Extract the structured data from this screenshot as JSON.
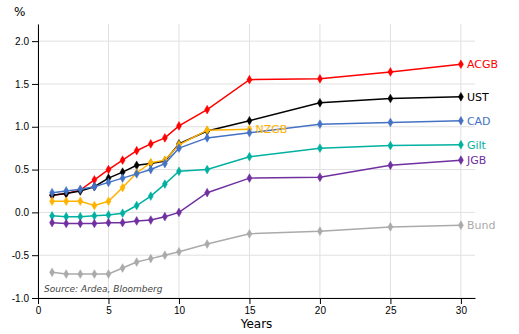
{
  "chart_data": {
    "type": "line",
    "x_label": "Years",
    "y_label": "%",
    "annotations": [
      "Source: Ardea, Bloomberg"
    ],
    "xlim": [
      0,
      31
    ],
    "xticks": [
      0,
      5,
      10,
      15,
      20,
      25,
      30
    ],
    "ylim": [
      -1.0,
      2.2
    ],
    "yticks": [
      {
        "value": -1.0,
        "label": "-1.0"
      },
      {
        "value": -0.5,
        "label": "-0.5"
      },
      {
        "value": 0.0,
        "label": "0.0"
      },
      {
        "value": 0.5,
        "label": "0.5"
      },
      {
        "value": 1.0,
        "label": "1.0"
      },
      {
        "value": 1.5,
        "label": "1.5"
      },
      {
        "value": 2.0,
        "label": "2.0"
      }
    ],
    "grid": true,
    "marker": "diamond",
    "series": [
      {
        "name": "ACGB",
        "color": "#FF0000",
        "x": [
          1,
          2,
          3,
          4,
          5,
          6,
          7,
          8,
          9,
          10,
          12,
          15,
          20,
          25,
          30
        ],
        "values": [
          0.2,
          0.22,
          0.26,
          0.38,
          0.5,
          0.61,
          0.72,
          0.8,
          0.87,
          1.01,
          1.2,
          1.55,
          1.56,
          1.64,
          1.73
        ]
      },
      {
        "name": "UST",
        "color": "#000000",
        "x": [
          1,
          2,
          3,
          4,
          5,
          6,
          7,
          8,
          9,
          10,
          12,
          15,
          20,
          25,
          30
        ],
        "values": [
          0.2,
          0.22,
          0.25,
          0.3,
          0.4,
          0.47,
          0.55,
          0.57,
          0.6,
          0.8,
          0.95,
          1.07,
          1.28,
          1.33,
          1.35
        ]
      },
      {
        "name": "NZGB",
        "color": "#FFB300",
        "x": [
          1,
          2,
          3,
          4,
          5,
          6,
          7,
          8,
          9,
          10,
          12,
          15
        ],
        "values": [
          0.13,
          0.13,
          0.13,
          0.08,
          0.13,
          0.29,
          0.46,
          0.58,
          0.61,
          0.79,
          0.96,
          0.97
        ]
      },
      {
        "name": "CAD",
        "color": "#4472C4",
        "x": [
          1,
          2,
          3,
          4,
          5,
          6,
          7,
          8,
          9,
          10,
          12,
          15,
          20,
          25,
          30
        ],
        "values": [
          0.23,
          0.25,
          0.27,
          0.3,
          0.35,
          0.4,
          0.45,
          0.5,
          0.57,
          0.75,
          0.87,
          0.93,
          1.03,
          1.05,
          1.07
        ]
      },
      {
        "name": "Gilt",
        "color": "#00B0A0",
        "x": [
          1,
          2,
          3,
          4,
          5,
          6,
          7,
          8,
          9,
          10,
          12,
          15,
          20,
          25,
          30
        ],
        "values": [
          -0.04,
          -0.05,
          -0.05,
          -0.04,
          -0.03,
          -0.01,
          0.08,
          0.19,
          0.33,
          0.48,
          0.5,
          0.65,
          0.75,
          0.78,
          0.79
        ]
      },
      {
        "name": "JGB",
        "color": "#7030A0",
        "x": [
          1,
          2,
          3,
          4,
          5,
          6,
          7,
          8,
          9,
          10,
          12,
          15,
          20,
          25,
          30
        ],
        "values": [
          -0.12,
          -0.13,
          -0.13,
          -0.13,
          -0.12,
          -0.12,
          -0.1,
          -0.09,
          -0.05,
          0.0,
          0.23,
          0.4,
          0.41,
          0.55,
          0.61
        ]
      },
      {
        "name": "Bund",
        "color": "#AAAAAA",
        "x": [
          1,
          2,
          3,
          4,
          5,
          6,
          7,
          8,
          9,
          10,
          12,
          15,
          20,
          25,
          30
        ],
        "values": [
          -0.7,
          -0.72,
          -0.72,
          -0.72,
          -0.72,
          -0.65,
          -0.58,
          -0.54,
          -0.5,
          -0.46,
          -0.37,
          -0.25,
          -0.22,
          -0.17,
          -0.15
        ]
      }
    ]
  }
}
